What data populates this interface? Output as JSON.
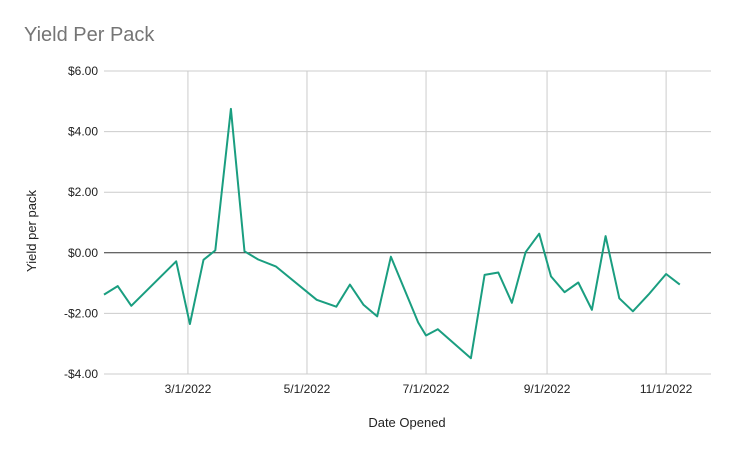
{
  "chart_data": {
    "type": "line",
    "title": "Yield Per Pack",
    "xlabel": "Date Opened",
    "ylabel": "Yield per pack",
    "ylim": [
      -4,
      6
    ],
    "xlim": [
      "2022-01-17",
      "2022-11-24"
    ],
    "yticks": [
      6,
      4,
      2,
      0,
      -2,
      -4
    ],
    "ytick_labels": [
      "$6.00",
      "$4.00",
      "$2.00",
      "$0.00",
      "-$2.00",
      "-$4.00"
    ],
    "xticks": [
      "2022-03-01",
      "2022-05-01",
      "2022-07-01",
      "2022-09-01",
      "2022-11-01"
    ],
    "xtick_labels": [
      "3/1/2022",
      "5/1/2022",
      "7/1/2022",
      "9/1/2022",
      "11/1/2022"
    ],
    "grid": true,
    "line_color": "#1a9e80",
    "series": [
      {
        "x": [
          "2022-01-17",
          "2022-01-24",
          "2022-01-31",
          "2022-02-23",
          "2022-03-02",
          "2022-03-09",
          "2022-03-15",
          "2022-03-23",
          "2022-03-30",
          "2022-04-06",
          "2022-04-15",
          "2022-05-06",
          "2022-05-16",
          "2022-05-23",
          "2022-05-30",
          "2022-06-06",
          "2022-06-13",
          "2022-06-27",
          "2022-07-01",
          "2022-07-07",
          "2022-07-24",
          "2022-07-31",
          "2022-08-07",
          "2022-08-14",
          "2022-08-21",
          "2022-08-28",
          "2022-09-03",
          "2022-09-10",
          "2022-09-17",
          "2022-09-24",
          "2022-10-01",
          "2022-10-08",
          "2022-10-15",
          "2022-10-23",
          "2022-11-01",
          "2022-11-08"
        ],
        "y": [
          -1.38,
          -1.1,
          -1.75,
          -0.28,
          -2.35,
          -0.23,
          0.08,
          4.75,
          0.05,
          -0.22,
          -0.45,
          -1.55,
          -1.78,
          -1.05,
          -1.72,
          -2.1,
          -0.13,
          -2.3,
          -2.73,
          -2.52,
          -3.48,
          -0.73,
          -0.65,
          -1.65,
          0.02,
          0.63,
          -0.78,
          -1.3,
          -0.98,
          -1.88,
          0.55,
          -1.5,
          -1.93,
          -1.38,
          -0.7,
          -1.05
        ]
      }
    ]
  }
}
